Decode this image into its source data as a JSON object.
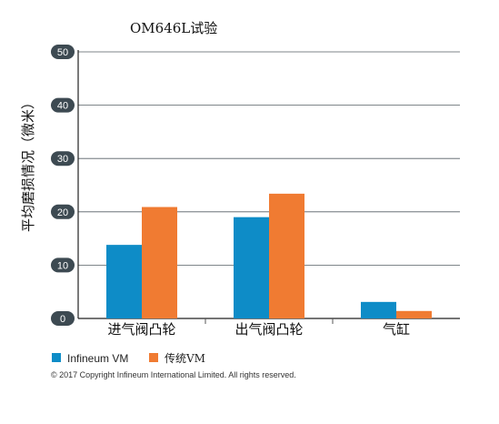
{
  "chart_data": {
    "type": "bar",
    "title": "OM646L试验",
    "ylabel": "平均磨损情况（微米）",
    "xlabel": "",
    "ylim": [
      0,
      50
    ],
    "yticks": [
      0,
      10,
      20,
      30,
      40,
      50
    ],
    "grid": true,
    "legend_position": "bottom-left",
    "categories": [
      "进气阀凸轮",
      "出气阀凸轮",
      "气缸"
    ],
    "series": [
      {
        "name": "Infineum VM",
        "color": "#0e8cc7",
        "values": [
          13.8,
          19,
          3.1
        ]
      },
      {
        "name": "传统VM",
        "color": "#f07b32",
        "values": [
          20.9,
          23.4,
          1.4
        ]
      }
    ]
  },
  "footer": {
    "copyright": "© 2017 Copyright Infineum International Limited. All rights reserved."
  }
}
